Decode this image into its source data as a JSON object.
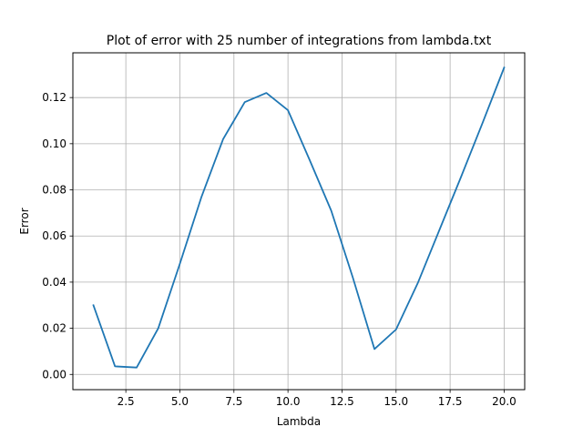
{
  "chart_data": {
    "type": "line",
    "title": "Plot of error with 25 number of integrations from lambda.txt",
    "xlabel": "Lambda",
    "ylabel": "Error",
    "xlim": [
      0.05,
      20.95
    ],
    "ylim": [
      -0.0066,
      0.1394
    ],
    "x_ticks": [
      2.5,
      5.0,
      7.5,
      10.0,
      12.5,
      15.0,
      17.5,
      20.0
    ],
    "x_tick_labels": [
      "2.5",
      "5.0",
      "7.5",
      "10.0",
      "12.5",
      "15.0",
      "17.5",
      "20.0"
    ],
    "y_ticks": [
      0.0,
      0.02,
      0.04,
      0.06,
      0.08,
      0.1,
      0.12
    ],
    "y_tick_labels": [
      "0.00",
      "0.02",
      "0.04",
      "0.06",
      "0.08",
      "0.10",
      "0.12"
    ],
    "grid": true,
    "series": [
      {
        "color": "#1f77b4",
        "x": [
          1,
          2,
          3,
          4,
          5,
          6,
          7,
          8,
          9,
          10,
          11,
          12,
          13,
          14,
          15,
          16,
          17,
          18,
          19,
          20
        ],
        "y": [
          0.03,
          0.0035,
          0.003,
          0.02,
          0.048,
          0.077,
          0.102,
          0.118,
          0.122,
          0.1145,
          0.093,
          0.071,
          0.042,
          0.011,
          0.0195,
          0.0395,
          0.0625,
          0.0855,
          0.109,
          0.133
        ]
      }
    ]
  }
}
